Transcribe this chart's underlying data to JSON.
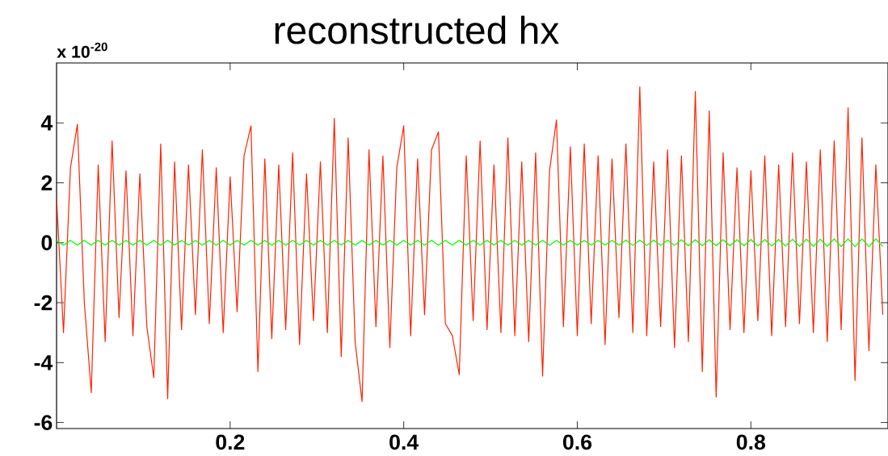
{
  "chart_data": {
    "type": "line",
    "title": "reconstructed hx",
    "annotations": [
      "x 10$^{-20}$"
    ],
    "x": [
      0.0,
      0.008,
      0.016,
      0.024,
      0.032,
      0.04,
      0.048,
      0.056,
      0.064,
      0.072,
      0.08,
      0.088,
      0.096,
      0.104,
      0.112,
      0.12,
      0.128,
      0.136,
      0.144,
      0.152,
      0.16,
      0.168,
      0.176,
      0.184,
      0.192,
      0.2,
      0.208,
      0.216,
      0.224,
      0.232,
      0.24,
      0.248,
      0.256,
      0.264,
      0.272,
      0.28,
      0.288,
      0.296,
      0.304,
      0.312,
      0.32,
      0.328,
      0.336,
      0.344,
      0.352,
      0.36,
      0.368,
      0.376,
      0.384,
      0.392,
      0.4,
      0.408,
      0.416,
      0.424,
      0.432,
      0.44,
      0.448,
      0.456,
      0.464,
      0.472,
      0.48,
      0.488,
      0.496,
      0.504,
      0.512,
      0.52,
      0.528,
      0.536,
      0.544,
      0.552,
      0.56,
      0.568,
      0.576,
      0.584,
      0.592,
      0.6,
      0.608,
      0.616,
      0.624,
      0.632,
      0.64,
      0.648,
      0.656,
      0.664,
      0.672,
      0.68,
      0.688,
      0.696,
      0.704,
      0.712,
      0.72,
      0.728,
      0.736,
      0.744,
      0.752,
      0.76,
      0.768,
      0.776,
      0.784,
      0.792,
      0.8,
      0.808,
      0.816,
      0.824,
      0.832,
      0.84,
      0.848,
      0.856,
      0.864,
      0.872,
      0.88,
      0.888,
      0.896,
      0.904,
      0.912,
      0.92,
      0.928,
      0.936,
      0.944,
      0.952
    ],
    "series": [
      {
        "color": "#ff2200",
        "values": [
          1.5,
          -3.0,
          2.5,
          3.95,
          -2.0,
          -5.0,
          2.6,
          -3.3,
          3.4,
          -2.5,
          2.4,
          -3.1,
          2.3,
          -2.8,
          -4.5,
          3.3,
          -5.2,
          2.7,
          -2.9,
          2.6,
          -2.4,
          3.1,
          -2.7,
          2.5,
          -3.0,
          2.2,
          -2.3,
          2.9,
          3.9,
          -4.3,
          2.8,
          -3.2,
          2.6,
          -2.9,
          3.0,
          -3.4,
          2.3,
          -2.6,
          2.7,
          -3.0,
          4.15,
          -3.8,
          3.5,
          -3.3,
          -5.3,
          3.1,
          -2.8,
          2.9,
          -3.5,
          2.5,
          3.9,
          -3.1,
          2.8,
          -2.4,
          3.1,
          3.7,
          -2.7,
          -3.1,
          -4.4,
          2.9,
          -2.6,
          3.4,
          -2.9,
          2.6,
          -3.0,
          3.5,
          -3.1,
          2.7,
          -3.3,
          3.0,
          -4.45,
          2.4,
          4.1,
          -2.8,
          3.2,
          -3.1,
          3.3,
          -2.7,
          2.9,
          -3.4,
          2.8,
          -2.5,
          3.3,
          -3.0,
          5.2,
          -3.1,
          2.7,
          -2.8,
          3.1,
          -3.5,
          2.9,
          -3.3,
          5.05,
          -4.3,
          4.4,
          -5.15,
          3.0,
          -2.9,
          2.5,
          -3.0,
          2.4,
          -2.6,
          2.9,
          -3.1,
          2.6,
          -2.8,
          3.0,
          -2.7,
          2.7,
          -3.0,
          3.1,
          -3.3,
          3.4,
          -2.9,
          4.5,
          -4.6,
          3.5,
          -3.6,
          2.6,
          -2.4
        ]
      },
      {
        "color": "#00ff00",
        "values": [
          0.08,
          -0.08,
          0.08,
          -0.08,
          0.08,
          -0.08,
          0.08,
          -0.08,
          0.08,
          -0.08,
          0.08,
          -0.08,
          0.08,
          -0.08,
          0.08,
          -0.08,
          0.08,
          -0.08,
          0.08,
          -0.08,
          0.08,
          -0.08,
          0.08,
          -0.08,
          0.08,
          -0.08,
          0.08,
          -0.08,
          0.08,
          -0.08,
          0.08,
          -0.08,
          0.08,
          -0.08,
          0.08,
          -0.08,
          0.08,
          -0.08,
          0.08,
          -0.08,
          0.08,
          -0.08,
          0.08,
          -0.08,
          0.08,
          -0.08,
          0.08,
          -0.08,
          0.08,
          -0.08,
          0.08,
          -0.08,
          0.08,
          -0.08,
          0.08,
          -0.08,
          0.08,
          -0.08,
          0.08,
          -0.08,
          0.08,
          -0.08,
          0.08,
          -0.08,
          0.08,
          -0.08,
          0.08,
          -0.08,
          0.08,
          -0.08,
          0.08,
          -0.08,
          0.08,
          -0.08,
          0.08,
          -0.08,
          0.08,
          -0.08,
          0.08,
          -0.08,
          0.08,
          -0.08,
          0.09,
          -0.09,
          0.09,
          -0.09,
          0.09,
          -0.09,
          0.09,
          -0.09,
          0.1,
          -0.1,
          0.1,
          -0.1,
          0.1,
          -0.1,
          0.1,
          -0.1,
          0.1,
          -0.1,
          0.11,
          -0.11,
          0.11,
          -0.11,
          0.11,
          -0.11,
          0.12,
          -0.12,
          0.12,
          -0.12,
          0.12,
          -0.12,
          0.13,
          -0.13,
          0.13,
          -0.13,
          0.13,
          -0.13,
          0.13,
          -0.13
        ]
      }
    ],
    "xlim": [
      0,
      0.958
    ],
    "ylim": [
      -6.2,
      6
    ],
    "xticks": [
      0.2,
      0.4,
      0.6,
      0.8
    ],
    "yticks": [
      -6,
      -4,
      -2,
      0,
      2,
      4
    ]
  }
}
